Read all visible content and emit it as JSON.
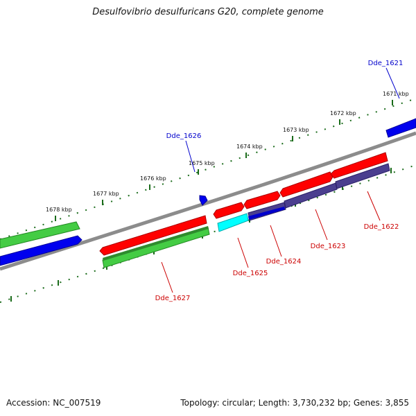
{
  "title": "Desulfovibrio desulfuricans G20, complete genome",
  "footer": {
    "accession": "Accession: NC_007519",
    "summary": "Topology: circular; Length: 3,730,232 bp; Genes: 3,855"
  },
  "ticks": [
    {
      "label": "1671 kbp",
      "kbp": 1671
    },
    {
      "label": "1672 kbp",
      "kbp": 1672
    },
    {
      "label": "1673 kbp",
      "kbp": 1673
    },
    {
      "label": "1674 kbp",
      "kbp": 1674
    },
    {
      "label": "1675 kbp",
      "kbp": 1675
    },
    {
      "label": "1676 kbp",
      "kbp": 1676
    },
    {
      "label": "1677 kbp",
      "kbp": 1677
    },
    {
      "label": "1678 kbp",
      "kbp": 1678
    }
  ],
  "gene_labels": [
    {
      "id": "Dde_1621",
      "color": "#0000cc"
    },
    {
      "id": "Dde_1622",
      "color": "#cc0000"
    },
    {
      "id": "Dde_1623",
      "color": "#cc0000"
    },
    {
      "id": "Dde_1624",
      "color": "#cc0000"
    },
    {
      "id": "Dde_1625",
      "color": "#cc0000"
    },
    {
      "id": "Dde_1626",
      "color": "#0000cc"
    },
    {
      "id": "Dde_1627",
      "color": "#cc0000"
    }
  ],
  "colors": {
    "backbone": "#8c8c8c",
    "tick": "#1a6b1a",
    "forward_gene": "#ff0000",
    "reverse_gene": "#0000ee",
    "forward_cds": "#44cc44",
    "dark_cds": "#2e8b2e",
    "slate_cds": "#4b3f8f",
    "cyan_cds": "#00ffff"
  }
}
